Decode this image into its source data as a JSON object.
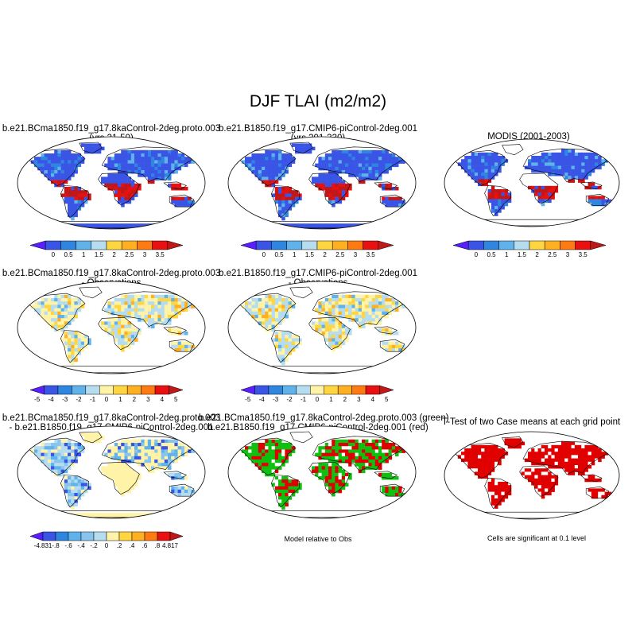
{
  "title": "DJF TLAI (m2/m2)",
  "panels": [
    {
      "title_line1": "b.e21.BCma1850.f19_g17.8kaControl-2deg.proto.003",
      "title_line2": "(yrs 21-50)",
      "style": "abs"
    },
    {
      "title_line1": "b.e21.B1850.f19_g17.CMIP6-piControl-2deg.001",
      "title_line2": "(yrs 301-330)",
      "style": "abs"
    },
    {
      "title_line1": "MODIS (2001-2003)",
      "title_line2": "",
      "style": "abs"
    },
    {
      "title_line1": "b.e21.BCma1850.f19_g17.8kaControl-2deg.proto.003",
      "title_line2": "- Observations",
      "style": "diff"
    },
    {
      "title_line1": "b.e21.B1850.f19_g17.CMIP6-piControl-2deg.001",
      "title_line2": "- Observations",
      "style": "diff"
    },
    {
      "title_line1": "b.e21.BCma1850.f19_g17.8kaControl-2deg.proto.003",
      "title_line2": "- b.e21.B1850.f19_g17.CMIP6-piControl-2deg.001",
      "style": "diff2"
    },
    {
      "title_line1": "b.e21.BCma1850.f19_g17.8kaControl-2deg.proto.003 (green)",
      "title_line2": "b.e21.B1850.f19_g17.CMIP6-piControl-2deg.001 (red)",
      "style": "compare",
      "note": "Model relative to Obs"
    },
    {
      "title_line1": "T-Test of two Case means at each grid point",
      "title_line2": "",
      "style": "ttest",
      "note": "Cells are significant at 0.1 level"
    }
  ],
  "colorbars": {
    "abs": {
      "colors": [
        "#5a1fff",
        "#3a55e6",
        "#2e86e0",
        "#5fb2ea",
        "#b6dcf0",
        "#ffd640",
        "#ffb020",
        "#ff7a10",
        "#e81010",
        "#c01818"
      ],
      "labels": [
        "0",
        "0.5",
        "1",
        "1.5",
        "2",
        "2.5",
        "3",
        "3.5"
      ]
    },
    "diff": {
      "colors": [
        "#5a1fff",
        "#3a55e6",
        "#2e86e0",
        "#5fb2ea",
        "#b6dcf0",
        "#fff3a8",
        "#ffd640",
        "#ffb020",
        "#ff7a10",
        "#e81010",
        "#c01818"
      ],
      "labels": [
        "-5",
        "-4",
        "-3",
        "-2",
        "-1",
        "0",
        "1",
        "2",
        "3",
        "4",
        "5"
      ]
    },
    "diff2": {
      "colors": [
        "#5a1fff",
        "#3a55e6",
        "#2e86e0",
        "#5fb2ea",
        "#88c4ee",
        "#b6dcf0",
        "#fff3a8",
        "#ffd640",
        "#ffb020",
        "#ff7a10",
        "#e81010",
        "#c01818"
      ],
      "labels": [
        "-4.831",
        "-.8",
        "-.6",
        "-.4",
        "-.2",
        "0",
        ".2",
        ".4",
        ".6",
        ".8",
        "4.817"
      ]
    }
  },
  "map_colors": {
    "ocean": "#ffffff",
    "coast": "#000000",
    "green": "#10c010",
    "red": "#e00000"
  }
}
